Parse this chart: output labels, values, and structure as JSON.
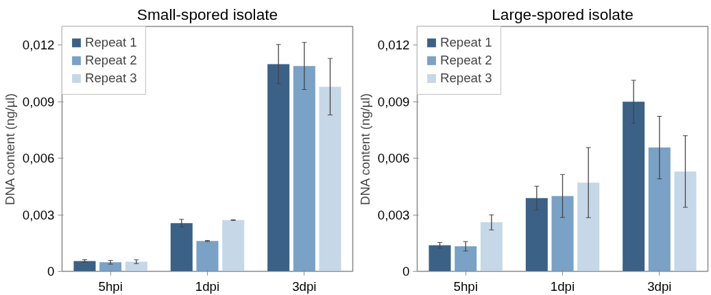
{
  "chart_data": [
    {
      "type": "bar",
      "title": "Small-spored isolate",
      "ylabel": "DNA content (ng/µl)",
      "categories": [
        "5hpi",
        "1dpi",
        "3dpi"
      ],
      "ylim": [
        0,
        0.013
      ],
      "yticks": [
        0,
        {
          "value": 0.003,
          "label": "0,003"
        },
        {
          "value": 0.006,
          "label": "0,006"
        },
        {
          "value": 0.009,
          "label": "0,009"
        },
        {
          "value": 0.012,
          "label": "0,012"
        }
      ],
      "grid": false,
      "legend": "top left",
      "series": [
        {
          "name": "Repeat 1",
          "color": "#3b6186",
          "values": [
            0.00055,
            0.00256,
            0.011
          ],
          "errors": [
            7e-05,
            0.0002,
            0.00104
          ]
        },
        {
          "name": "Repeat 2",
          "color": "#7aa1c6",
          "values": [
            0.00048,
            0.00161,
            0.0109
          ],
          "errors": [
            0.0001,
            3e-05,
            0.00125
          ]
        },
        {
          "name": "Repeat 3",
          "color": "#c6d7e7",
          "values": [
            0.00051,
            0.00272,
            0.0098
          ],
          "errors": [
            0.0001,
            2e-05,
            0.0015
          ]
        }
      ]
    },
    {
      "type": "bar",
      "title": "Large-spored isolate",
      "ylabel": "DNA content (ng/µl)",
      "categories": [
        "5hpi",
        "1dpi",
        "3dpi"
      ],
      "ylim": [
        0,
        0.013
      ],
      "yticks": [
        0,
        {
          "value": 0.003,
          "label": "0,003"
        },
        {
          "value": 0.006,
          "label": "0,006"
        },
        {
          "value": 0.009,
          "label": "0,009"
        },
        {
          "value": 0.012,
          "label": "0,012"
        }
      ],
      "grid": false,
      "legend": "top left",
      "series": [
        {
          "name": "Repeat 1",
          "color": "#3b6186",
          "values": [
            0.00138,
            0.00389,
            0.009
          ],
          "errors": [
            0.00015,
            0.00063,
            0.00114
          ]
        },
        {
          "name": "Repeat 2",
          "color": "#7aa1c6",
          "values": [
            0.00133,
            0.004,
            0.00657
          ],
          "errors": [
            0.00025,
            0.00114,
            0.00166
          ]
        },
        {
          "name": "Repeat 3",
          "color": "#c6d7e7",
          "values": [
            0.0026,
            0.00471,
            0.0053
          ],
          "errors": [
            0.0004,
            0.00186,
            0.0019
          ]
        }
      ]
    }
  ]
}
